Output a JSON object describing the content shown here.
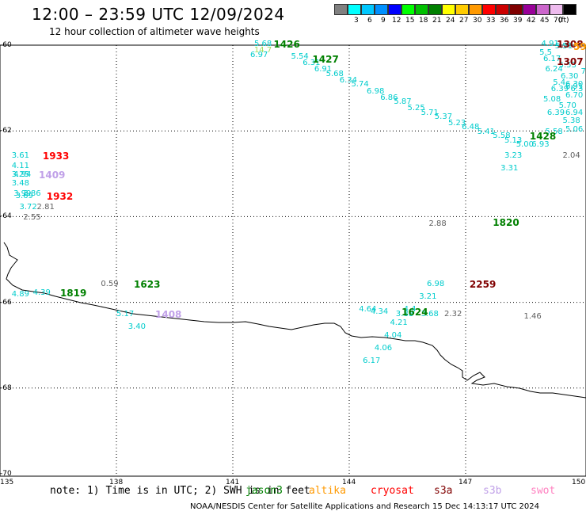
{
  "title": "12:00 – 23:59 UTC 12/09/2024",
  "subtitle": "12 hour collection of altimeter wave heights",
  "colorbar": {
    "unit": "(ft)",
    "bins": [
      {
        "label": "",
        "color": "#808080"
      },
      {
        "label": "3",
        "color": "#00ffff"
      },
      {
        "label": "6",
        "color": "#00c8ff"
      },
      {
        "label": "9",
        "color": "#0090ff"
      },
      {
        "label": "12",
        "color": "#0000ff"
      },
      {
        "label": "15",
        "color": "#00ff00"
      },
      {
        "label": "18",
        "color": "#00c000"
      },
      {
        "label": "21",
        "color": "#008000"
      },
      {
        "label": "24",
        "color": "#ffff00"
      },
      {
        "label": "27",
        "color": "#ffcc00"
      },
      {
        "label": "30",
        "color": "#ff9900"
      },
      {
        "label": "33",
        "color": "#ff0000"
      },
      {
        "label": "36",
        "color": "#cc0000"
      },
      {
        "label": "39",
        "color": "#800000"
      },
      {
        "label": "42",
        "color": "#990099"
      },
      {
        "label": "45",
        "color": "#cc66cc"
      },
      {
        "label": "70",
        "color": "#eebbee"
      },
      {
        "label": "",
        "color": "#000000"
      }
    ]
  },
  "axes": {
    "lat_labels": [
      "-60",
      "-62",
      "-64",
      "-66",
      "-68",
      "-70"
    ],
    "lon_labels": [
      "135",
      "138",
      "141",
      "144",
      "147",
      "150"
    ]
  },
  "colors": {
    "jason3": "#008000",
    "altika": "#ff9900",
    "cryosat": "#ff0000",
    "s3a": "#800000",
    "s3b": "#c0a0e8",
    "swot": "#ff80c0",
    "swh_cyan": "#00cccc",
    "swh_gray": "#606060",
    "swh_lime": "#a0e060",
    "coast": "#000000"
  },
  "observations": [
    {
      "lon": 141.55,
      "lat": -60.0,
      "text": "5.68",
      "c": "swh_cyan"
    },
    {
      "lon": 141.55,
      "lat": -60.15,
      "text": "14.7",
      "c": "swh_lime"
    },
    {
      "lon": 141.45,
      "lat": -60.25,
      "text": "6.97",
      "c": "swh_cyan"
    },
    {
      "lon": 142.5,
      "lat": -60.3,
      "text": "5.54",
      "c": "swh_cyan"
    },
    {
      "lon": 142.8,
      "lat": -60.45,
      "text": "6.31",
      "c": "swh_cyan"
    },
    {
      "lon": 143.1,
      "lat": -60.6,
      "text": "6.91",
      "c": "swh_cyan"
    },
    {
      "lon": 143.4,
      "lat": -60.7,
      "text": "5.68",
      "c": "swh_cyan"
    },
    {
      "lon": 143.75,
      "lat": -60.85,
      "text": "6.34",
      "c": "swh_cyan"
    },
    {
      "lon": 144.05,
      "lat": -60.95,
      "text": "5.74",
      "c": "swh_cyan"
    },
    {
      "lon": 144.45,
      "lat": -61.1,
      "text": "6.98",
      "c": "swh_cyan"
    },
    {
      "lon": 144.8,
      "lat": -61.25,
      "text": "6.86",
      "c": "swh_cyan"
    },
    {
      "lon": 145.15,
      "lat": -61.35,
      "text": "5.87",
      "c": "swh_cyan"
    },
    {
      "lon": 145.5,
      "lat": -61.5,
      "text": "5.25",
      "c": "swh_cyan"
    },
    {
      "lon": 145.85,
      "lat": -61.6,
      "text": "5.71",
      "c": "swh_cyan"
    },
    {
      "lon": 146.2,
      "lat": -61.7,
      "text": "5.37",
      "c": "swh_cyan"
    },
    {
      "lon": 146.55,
      "lat": -61.85,
      "text": "5.23",
      "c": "swh_cyan"
    },
    {
      "lon": 146.9,
      "lat": -61.95,
      "text": "6.48",
      "c": "swh_cyan"
    },
    {
      "lon": 147.3,
      "lat": -62.05,
      "text": "5.41",
      "c": "swh_cyan"
    },
    {
      "lon": 147.7,
      "lat": -62.15,
      "text": "5.58",
      "c": "swh_cyan"
    },
    {
      "lon": 148.0,
      "lat": -62.25,
      "text": "5.13",
      "c": "swh_cyan"
    },
    {
      "lon": 148.3,
      "lat": -62.35,
      "text": "5.00",
      "c": "swh_cyan"
    },
    {
      "lon": 148.0,
      "lat": -62.6,
      "text": "3.23",
      "c": "swh_cyan"
    },
    {
      "lon": 147.9,
      "lat": -62.9,
      "text": "3.31",
      "c": "swh_cyan"
    },
    {
      "lon": 149.5,
      "lat": -62.6,
      "text": "2.04",
      "c": "swh_gray"
    },
    {
      "lon": 149.05,
      "lat": -62.05,
      "text": "5.58",
      "c": "swh_cyan"
    },
    {
      "lon": 149.85,
      "lat": -62.0,
      "text": "5.06",
      "c": "swh_cyan"
    },
    {
      "lon": 148.95,
      "lat": -60.0,
      "text": "4.91",
      "c": "swh_cyan"
    },
    {
      "lon": 149.3,
      "lat": -60.05,
      "text": "5.51",
      "c": "swh_cyan"
    },
    {
      "lon": 148.9,
      "lat": -60.2,
      "text": "5.5",
      "c": "swh_cyan"
    },
    {
      "lon": 149.0,
      "lat": -60.35,
      "text": "6.17",
      "c": "swh_cyan"
    },
    {
      "lon": 149.4,
      "lat": -60.5,
      "text": "5.53",
      "c": "swh_cyan"
    },
    {
      "lon": 149.05,
      "lat": -60.6,
      "text": "6.24",
      "c": "swh_cyan"
    },
    {
      "lon": 149.45,
      "lat": -60.75,
      "text": "6.30",
      "c": "swh_cyan"
    },
    {
      "lon": 149.25,
      "lat": -60.9,
      "text": "5.4",
      "c": "swh_cyan"
    },
    {
      "lon": 149.8,
      "lat": -60.95,
      "text": "6.30",
      "c": "swh_cyan"
    },
    {
      "lon": 149.2,
      "lat": -61.05,
      "text": "6.39",
      "c": "swh_cyan"
    },
    {
      "lon": 149.6,
      "lat": -61.2,
      "text": "6.70",
      "c": "swh_cyan"
    },
    {
      "lon": 149.0,
      "lat": -61.3,
      "text": "5.08",
      "c": "swh_cyan"
    },
    {
      "lon": 149.4,
      "lat": -61.45,
      "text": "5.70",
      "c": "swh_cyan"
    },
    {
      "lon": 149.1,
      "lat": -61.6,
      "text": "6.39",
      "c": "swh_cyan"
    },
    {
      "lon": 149.5,
      "lat": -61.8,
      "text": "5.38",
      "c": "swh_cyan"
    },
    {
      "lon": 149.7,
      "lat": -61.6,
      "text": "6.94",
      "c": "swh_cyan"
    },
    {
      "lon": 150.0,
      "lat": -60.65,
      "text": "7",
      "c": "swh_cyan"
    },
    {
      "lon": 150.0,
      "lat": -61.05,
      "text": "6.3",
      "c": "swh_cyan"
    },
    {
      "lon": 149.65,
      "lat": -61.0,
      "text": "6.91",
      "c": "swh_cyan"
    },
    {
      "lon": 148.7,
      "lat": -62.35,
      "text": "6.93",
      "c": "swh_cyan"
    },
    {
      "lon": 135.3,
      "lat": -62.6,
      "text": "3.61",
      "c": "swh_cyan"
    },
    {
      "lon": 135.3,
      "lat": -62.85,
      "text": "4.11",
      "c": "swh_cyan"
    },
    {
      "lon": 135.3,
      "lat": -63.05,
      "text": "3.25",
      "c": "swh_cyan"
    },
    {
      "lon": 135.35,
      "lat": -63.05,
      "text": "4.94",
      "c": "swh_cyan"
    },
    {
      "lon": 135.3,
      "lat": -63.25,
      "text": "3.48",
      "c": "swh_cyan"
    },
    {
      "lon": 135.35,
      "lat": -63.5,
      "text": "3.99",
      "c": "swh_cyan"
    },
    {
      "lon": 135.4,
      "lat": -63.55,
      "text": "3.69",
      "c": "swh_cyan"
    },
    {
      "lon": 135.6,
      "lat": -63.5,
      "text": "3.86",
      "c": "swh_cyan"
    },
    {
      "lon": 135.5,
      "lat": -63.8,
      "text": "3.72",
      "c": "swh_cyan"
    },
    {
      "lon": 135.95,
      "lat": -63.8,
      "text": "2.81",
      "c": "swh_gray"
    },
    {
      "lon": 135.6,
      "lat": -64.05,
      "text": "2.55",
      "c": "swh_gray"
    },
    {
      "lon": 135.3,
      "lat": -65.85,
      "text": "4.89",
      "c": "swh_cyan"
    },
    {
      "lon": 135.85,
      "lat": -65.8,
      "text": "4.39",
      "c": "swh_cyan"
    },
    {
      "lon": 137.6,
      "lat": -65.6,
      "text": "0.59",
      "c": "swh_gray"
    },
    {
      "lon": 138.0,
      "lat": -66.3,
      "text": "5.17",
      "c": "swh_cyan"
    },
    {
      "lon": 138.3,
      "lat": -66.6,
      "text": "3.40",
      "c": "swh_cyan"
    },
    {
      "lon": 146.05,
      "lat": -64.2,
      "text": "2.88",
      "c": "swh_gray"
    },
    {
      "lon": 146.0,
      "lat": -65.6,
      "text": "6.98",
      "c": "swh_cyan"
    },
    {
      "lon": 145.8,
      "lat": -65.9,
      "text": "3.21",
      "c": "swh_cyan"
    },
    {
      "lon": 144.25,
      "lat": -66.2,
      "text": "4.64",
      "c": "swh_cyan"
    },
    {
      "lon": 144.55,
      "lat": -66.25,
      "text": "4.34",
      "c": "swh_cyan"
    },
    {
      "lon": 145.4,
      "lat": -66.2,
      "text": "4.4",
      "c": "swh_cyan"
    },
    {
      "lon": 145.2,
      "lat": -66.3,
      "text": "3.88",
      "c": "swh_cyan"
    },
    {
      "lon": 145.85,
      "lat": -66.3,
      "text": "3.68",
      "c": "swh_cyan"
    },
    {
      "lon": 146.45,
      "lat": -66.3,
      "text": "2.32",
      "c": "swh_gray"
    },
    {
      "lon": 145.05,
      "lat": -66.5,
      "text": "4.21",
      "c": "swh_cyan"
    },
    {
      "lon": 144.9,
      "lat": -66.8,
      "text": "4.04",
      "c": "swh_cyan"
    },
    {
      "lon": 144.65,
      "lat": -67.1,
      "text": "4.06",
      "c": "swh_cyan"
    },
    {
      "lon": 144.35,
      "lat": -67.4,
      "text": "6.17",
      "c": "swh_cyan"
    },
    {
      "lon": 148.5,
      "lat": -66.35,
      "text": "1.46",
      "c": "swh_gray"
    }
  ],
  "pass_times": [
    {
      "lon": 142.05,
      "lat": -60.0,
      "text": "1426",
      "c": "jason3"
    },
    {
      "lon": 143.05,
      "lat": -60.35,
      "text": "1427",
      "c": "jason3"
    },
    {
      "lon": 148.65,
      "lat": -62.15,
      "text": "1428",
      "c": "jason3"
    },
    {
      "lon": 149.35,
      "lat": -60.0,
      "text": "1308",
      "c": "s3a"
    },
    {
      "lon": 149.85,
      "lat": -60.05,
      "text": "59",
      "c": "altika"
    },
    {
      "lon": 149.35,
      "lat": -60.4,
      "text": "1307",
      "c": "s3a"
    },
    {
      "lon": 136.1,
      "lat": -62.6,
      "text": "1933",
      "c": "cryosat"
    },
    {
      "lon": 136.0,
      "lat": -63.05,
      "text": "1409",
      "c": "s3b"
    },
    {
      "lon": 136.2,
      "lat": -63.55,
      "text": "1932",
      "c": "cryosat"
    },
    {
      "lon": 147.7,
      "lat": -64.15,
      "text": "1820",
      "c": "jason3"
    },
    {
      "lon": 136.55,
      "lat": -65.8,
      "text": "1819",
      "c": "jason3"
    },
    {
      "lon": 138.45,
      "lat": -65.6,
      "text": "1623",
      "c": "jason3"
    },
    {
      "lon": 139.0,
      "lat": -66.3,
      "text": "1408",
      "c": "s3b"
    },
    {
      "lon": 147.1,
      "lat": -65.6,
      "text": "2259",
      "c": "s3a"
    },
    {
      "lon": 145.35,
      "lat": -66.25,
      "text": "1624",
      "c": "jason3"
    }
  ],
  "note": "note: 1) Time is in UTC; 2) SWH is in feet",
  "missions": [
    {
      "name": "jason3",
      "c": "jason3"
    },
    {
      "name": "altika",
      "c": "altika"
    },
    {
      "name": "cryosat",
      "c": "cryosat"
    },
    {
      "name": "s3a",
      "c": "s3a"
    },
    {
      "name": "s3b",
      "c": "s3b"
    },
    {
      "name": "swot",
      "c": "swot"
    }
  ],
  "credit": "NOAA/NESDIS Center for Satellite Applications and Research    15 Dec 14:13:17 UTC 2024"
}
